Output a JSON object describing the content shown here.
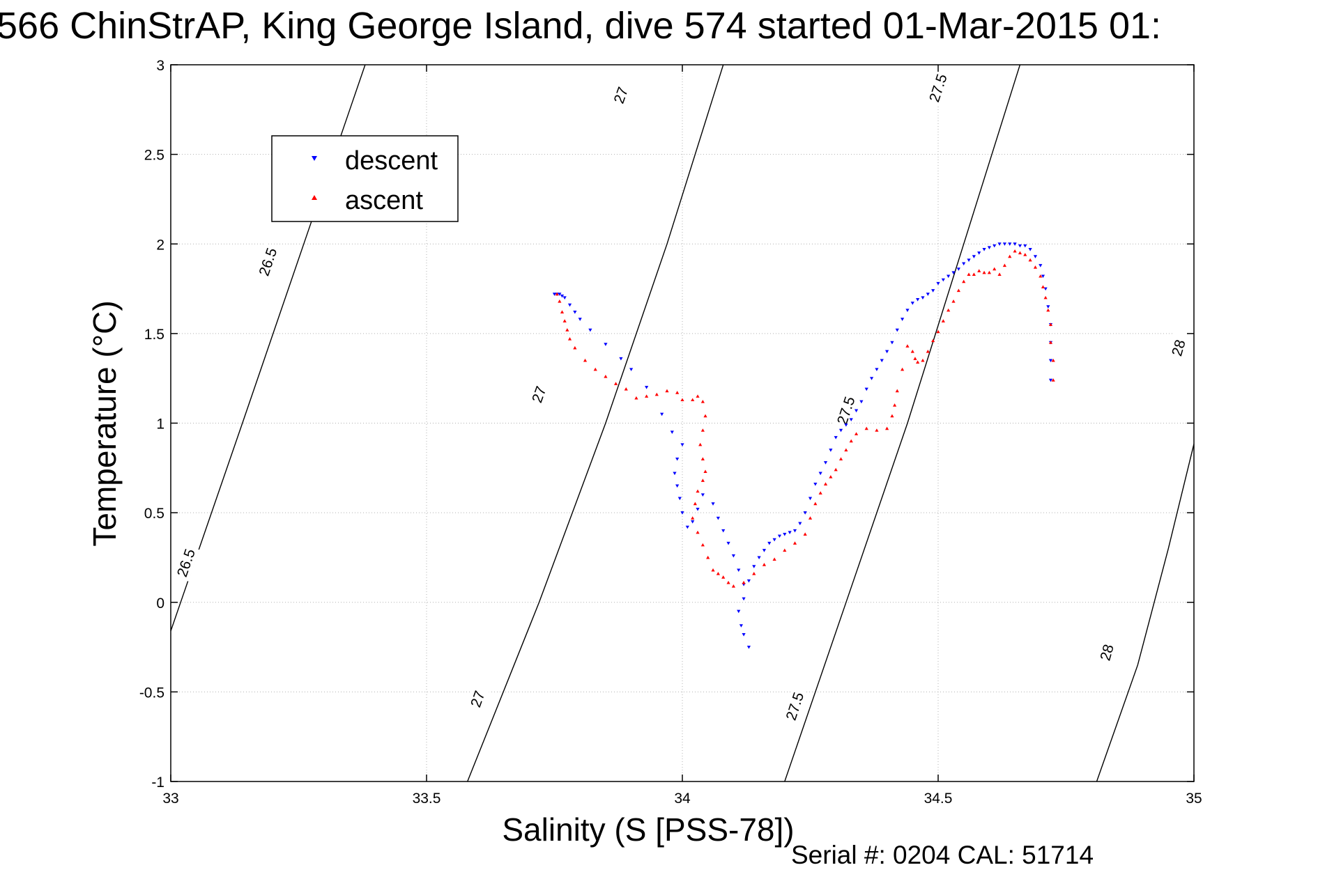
{
  "chart_data": {
    "type": "scatter",
    "title": "566 ChinStrAP, King George Island, dive 574 started 01-Mar-2015 01:",
    "xlabel": "Salinity (S [PSS-78])",
    "ylabel": "Temperature (°C)",
    "xlim": [
      33,
      35
    ],
    "ylim": [
      -1,
      3
    ],
    "xticks": [
      33,
      33.5,
      34,
      34.5,
      35
    ],
    "xtick_labels": [
      "33",
      "33.5",
      "34",
      "34.5",
      "35"
    ],
    "yticks": [
      -1,
      -0.5,
      0,
      0.5,
      1,
      1.5,
      2,
      2.5,
      3
    ],
    "ytick_labels": [
      "-1",
      "-0.5",
      "0",
      "0.5",
      "1",
      "1.5",
      "2",
      "2.5",
      "3"
    ],
    "grid": true,
    "legend_position": "top-left",
    "colors": {
      "descent": "#0000ff",
      "ascent": "#ff0000",
      "contour": "#000000",
      "grid": "#b0b0b0"
    },
    "series": [
      {
        "name": "descent",
        "marker": "triangle-down",
        "points": [
          [
            34.72,
            1.24
          ],
          [
            34.72,
            1.35
          ],
          [
            34.72,
            1.45
          ],
          [
            34.72,
            1.55
          ],
          [
            34.715,
            1.65
          ],
          [
            34.71,
            1.75
          ],
          [
            34.705,
            1.82
          ],
          [
            34.7,
            1.88
          ],
          [
            34.69,
            1.93
          ],
          [
            34.68,
            1.97
          ],
          [
            34.67,
            1.99
          ],
          [
            34.66,
            1.99
          ],
          [
            34.65,
            2.0
          ],
          [
            34.64,
            2.0
          ],
          [
            34.63,
            2.0
          ],
          [
            34.62,
            2.0
          ],
          [
            34.61,
            1.99
          ],
          [
            34.6,
            1.98
          ],
          [
            34.59,
            1.97
          ],
          [
            34.58,
            1.95
          ],
          [
            34.57,
            1.93
          ],
          [
            34.56,
            1.91
          ],
          [
            34.55,
            1.89
          ],
          [
            34.54,
            1.86
          ],
          [
            34.53,
            1.84
          ],
          [
            34.52,
            1.82
          ],
          [
            34.51,
            1.8
          ],
          [
            34.5,
            1.78
          ],
          [
            34.49,
            1.74
          ],
          [
            34.48,
            1.72
          ],
          [
            34.47,
            1.7
          ],
          [
            34.46,
            1.69
          ],
          [
            34.45,
            1.67
          ],
          [
            34.44,
            1.63
          ],
          [
            34.43,
            1.58
          ],
          [
            34.42,
            1.52
          ],
          [
            34.41,
            1.45
          ],
          [
            34.4,
            1.4
          ],
          [
            34.39,
            1.35
          ],
          [
            34.38,
            1.3
          ],
          [
            34.37,
            1.25
          ],
          [
            34.36,
            1.19
          ],
          [
            34.35,
            1.12
          ],
          [
            34.34,
            1.07
          ],
          [
            34.33,
            1.02
          ],
          [
            34.32,
            0.99
          ],
          [
            34.31,
            0.96
          ],
          [
            34.3,
            0.92
          ],
          [
            34.29,
            0.85
          ],
          [
            34.28,
            0.78
          ],
          [
            34.27,
            0.72
          ],
          [
            34.26,
            0.66
          ],
          [
            34.25,
            0.58
          ],
          [
            34.24,
            0.5
          ],
          [
            34.23,
            0.44
          ],
          [
            34.22,
            0.4
          ],
          [
            34.21,
            0.39
          ],
          [
            34.2,
            0.38
          ],
          [
            34.19,
            0.37
          ],
          [
            34.18,
            0.35
          ],
          [
            34.17,
            0.33
          ],
          [
            34.16,
            0.29
          ],
          [
            34.15,
            0.25
          ],
          [
            34.14,
            0.2
          ],
          [
            34.13,
            0.12
          ],
          [
            34.12,
            0.02
          ],
          [
            34.11,
            -0.05
          ],
          [
            34.115,
            -0.13
          ],
          [
            34.12,
            -0.18
          ],
          [
            34.13,
            -0.25
          ],
          [
            34.12,
            0.1
          ],
          [
            34.11,
            0.18
          ],
          [
            34.1,
            0.26
          ],
          [
            34.09,
            0.33
          ],
          [
            34.08,
            0.4
          ],
          [
            34.07,
            0.47
          ],
          [
            34.06,
            0.55
          ],
          [
            34.04,
            0.6
          ],
          [
            34.03,
            0.52
          ],
          [
            34.02,
            0.45
          ],
          [
            34.01,
            0.42
          ],
          [
            34.0,
            0.5
          ],
          [
            33.995,
            0.58
          ],
          [
            33.99,
            0.65
          ],
          [
            33.985,
            0.72
          ],
          [
            33.99,
            0.8
          ],
          [
            34.0,
            0.88
          ],
          [
            33.98,
            0.95
          ],
          [
            33.96,
            1.05
          ],
          [
            33.93,
            1.2
          ],
          [
            33.9,
            1.3
          ],
          [
            33.88,
            1.36
          ],
          [
            33.85,
            1.44
          ],
          [
            33.82,
            1.52
          ],
          [
            33.8,
            1.58
          ],
          [
            33.79,
            1.62
          ],
          [
            33.78,
            1.66
          ],
          [
            33.77,
            1.7
          ],
          [
            33.765,
            1.71
          ],
          [
            33.76,
            1.72
          ],
          [
            33.755,
            1.72
          ],
          [
            33.75,
            1.72
          ]
        ]
      },
      {
        "name": "ascent",
        "marker": "triangle-up",
        "points": [
          [
            34.725,
            1.24
          ],
          [
            34.725,
            1.35
          ],
          [
            34.72,
            1.45
          ],
          [
            34.72,
            1.55
          ],
          [
            34.715,
            1.63
          ],
          [
            34.71,
            1.7
          ],
          [
            34.705,
            1.76
          ],
          [
            34.7,
            1.82
          ],
          [
            34.69,
            1.87
          ],
          [
            34.68,
            1.91
          ],
          [
            34.67,
            1.94
          ],
          [
            34.66,
            1.95
          ],
          [
            34.65,
            1.96
          ],
          [
            34.64,
            1.93
          ],
          [
            34.63,
            1.88
          ],
          [
            34.62,
            1.83
          ],
          [
            34.61,
            1.86
          ],
          [
            34.6,
            1.84
          ],
          [
            34.59,
            1.84
          ],
          [
            34.58,
            1.85
          ],
          [
            34.57,
            1.83
          ],
          [
            34.56,
            1.83
          ],
          [
            34.55,
            1.79
          ],
          [
            34.54,
            1.74
          ],
          [
            34.53,
            1.68
          ],
          [
            34.52,
            1.63
          ],
          [
            34.51,
            1.57
          ],
          [
            34.5,
            1.51
          ],
          [
            34.49,
            1.46
          ],
          [
            34.48,
            1.4
          ],
          [
            34.47,
            1.35
          ],
          [
            34.46,
            1.34
          ],
          [
            34.455,
            1.36
          ],
          [
            34.45,
            1.4
          ],
          [
            34.44,
            1.43
          ],
          [
            34.43,
            1.3
          ],
          [
            34.42,
            1.18
          ],
          [
            34.415,
            1.1
          ],
          [
            34.41,
            1.04
          ],
          [
            34.4,
            0.97
          ],
          [
            34.38,
            0.96
          ],
          [
            34.36,
            0.97
          ],
          [
            34.34,
            0.94
          ],
          [
            34.33,
            0.9
          ],
          [
            34.32,
            0.85
          ],
          [
            34.31,
            0.8
          ],
          [
            34.3,
            0.74
          ],
          [
            34.29,
            0.7
          ],
          [
            34.28,
            0.66
          ],
          [
            34.27,
            0.61
          ],
          [
            34.26,
            0.55
          ],
          [
            34.25,
            0.47
          ],
          [
            34.24,
            0.38
          ],
          [
            34.22,
            0.33
          ],
          [
            34.2,
            0.29
          ],
          [
            34.18,
            0.24
          ],
          [
            34.16,
            0.21
          ],
          [
            34.14,
            0.16
          ],
          [
            34.12,
            0.11
          ],
          [
            34.1,
            0.09
          ],
          [
            34.09,
            0.11
          ],
          [
            34.08,
            0.14
          ],
          [
            34.07,
            0.16
          ],
          [
            34.06,
            0.18
          ],
          [
            34.05,
            0.25
          ],
          [
            34.04,
            0.32
          ],
          [
            34.03,
            0.39
          ],
          [
            34.02,
            0.47
          ],
          [
            34.025,
            0.55
          ],
          [
            34.03,
            0.62
          ],
          [
            34.04,
            0.68
          ],
          [
            34.045,
            0.73
          ],
          [
            34.04,
            0.8
          ],
          [
            34.035,
            0.88
          ],
          [
            34.04,
            0.96
          ],
          [
            34.045,
            1.04
          ],
          [
            34.04,
            1.12
          ],
          [
            34.03,
            1.15
          ],
          [
            34.02,
            1.13
          ],
          [
            34.0,
            1.13
          ],
          [
            33.99,
            1.17
          ],
          [
            33.97,
            1.18
          ],
          [
            33.95,
            1.16
          ],
          [
            33.93,
            1.15
          ],
          [
            33.91,
            1.14
          ],
          [
            33.89,
            1.19
          ],
          [
            33.87,
            1.22
          ],
          [
            33.85,
            1.26
          ],
          [
            33.83,
            1.3
          ],
          [
            33.81,
            1.35
          ],
          [
            33.79,
            1.42
          ],
          [
            33.78,
            1.47
          ],
          [
            33.775,
            1.52
          ],
          [
            33.77,
            1.57
          ],
          [
            33.765,
            1.62
          ],
          [
            33.76,
            1.68
          ],
          [
            33.755,
            1.72
          ]
        ]
      }
    ],
    "density_contours": [
      {
        "label": "26.5",
        "points": [
          [
            33.0,
            -0.16
          ],
          [
            33.14,
            1.0
          ],
          [
            33.26,
            2.0
          ],
          [
            33.38,
            3.0
          ]
        ],
        "label_positions": [
          [
            33.03,
            0.22
          ],
          [
            33.19,
            1.9
          ]
        ]
      },
      {
        "label": "27",
        "points": [
          [
            33.58,
            -1.0
          ],
          [
            33.72,
            0.0
          ],
          [
            33.85,
            1.0
          ],
          [
            33.97,
            2.0
          ],
          [
            34.08,
            3.0
          ]
        ],
        "label_positions": [
          [
            33.6,
            -0.54
          ],
          [
            33.72,
            1.16
          ],
          [
            33.88,
            2.83
          ]
        ]
      },
      {
        "label": "27.5",
        "points": [
          [
            34.2,
            -1.0
          ],
          [
            34.32,
            0.0
          ],
          [
            34.44,
            1.0
          ],
          [
            34.55,
            2.0
          ],
          [
            34.66,
            3.0
          ]
        ],
        "label_positions": [
          [
            34.22,
            -0.58
          ],
          [
            34.32,
            1.07
          ],
          [
            34.5,
            2.87
          ]
        ]
      },
      {
        "label": "28",
        "points": [
          [
            34.81,
            -1.0
          ],
          [
            34.89,
            -0.35
          ],
          [
            34.95,
            0.3
          ],
          [
            35.01,
            1.0
          ]
        ],
        "label_positions": [
          [
            34.83,
            -0.28
          ],
          [
            34.97,
            1.42
          ]
        ]
      }
    ],
    "footer": "Serial #: 0204   CAL: 51714"
  }
}
